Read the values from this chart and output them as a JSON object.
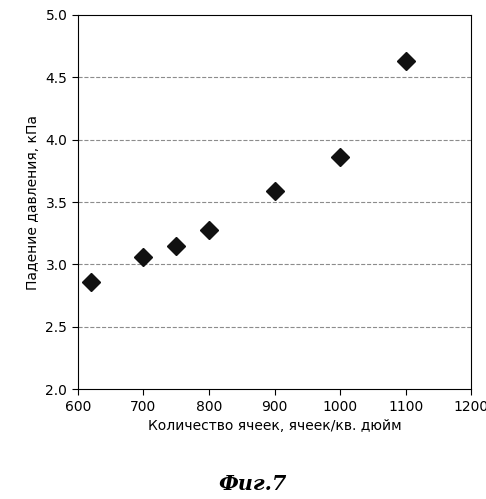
{
  "x": [
    620,
    700,
    750,
    800,
    900,
    1000,
    1100
  ],
  "y": [
    2.86,
    3.06,
    3.15,
    3.28,
    3.59,
    3.86,
    4.63
  ],
  "xlabel": "Количество ячеек, ячеек/кв. дюйм",
  "ylabel": "Падение давления, кПа",
  "caption": "Фиг.7",
  "xlim": [
    600,
    1200
  ],
  "ylim": [
    2.0,
    5.0
  ],
  "xticks": [
    600,
    700,
    800,
    900,
    1000,
    1100,
    1200
  ],
  "yticks": [
    2.0,
    2.5,
    3.0,
    3.5,
    4.0,
    4.5,
    5.0
  ],
  "grid_yticks": [
    2.5,
    3.0,
    3.5,
    4.0,
    4.5
  ],
  "marker_color": "#111111",
  "marker_size": 9,
  "background_color": "#ffffff",
  "xlabel_fontsize": 10,
  "ylabel_fontsize": 10,
  "tick_fontsize": 10,
  "caption_fontsize": 15
}
